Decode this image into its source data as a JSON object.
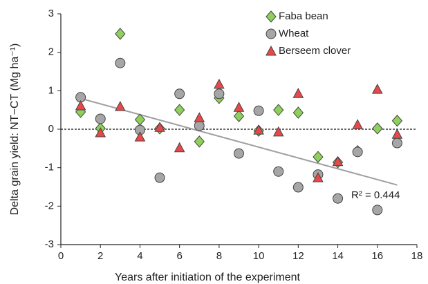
{
  "chart_data": {
    "type": "scatter",
    "x_label": "Years after initiation of the experiment",
    "y_label": "Delta grain yield: NT−CT (Mg ha⁻¹)",
    "x": [
      1,
      2,
      3,
      4,
      5,
      6,
      7,
      8,
      9,
      10,
      11,
      12,
      13,
      14,
      15,
      16,
      17
    ],
    "series": [
      {
        "name": "Faba bean",
        "color": "#8fd05c",
        "marker": "diamond",
        "values": [
          0.45,
          0.02,
          2.48,
          0.25,
          0.02,
          0.5,
          -0.32,
          0.81,
          0.34,
          -0.04,
          0.5,
          0.43,
          -0.72,
          -0.86,
          -0.57,
          0.02,
          0.22
        ]
      },
      {
        "name": "Wheat",
        "color": "#a6a6a6",
        "marker": "circle",
        "values": [
          0.83,
          0.27,
          1.72,
          -0.02,
          -1.26,
          0.92,
          0.09,
          0.92,
          -0.63,
          0.48,
          -1.1,
          -1.51,
          -1.18,
          -1.8,
          -0.59,
          -2.1,
          -0.36
        ]
      },
      {
        "name": "Berseem clover",
        "color": "#e8484a",
        "marker": "triangle",
        "values": [
          0.61,
          -0.09,
          0.59,
          -0.2,
          0.05,
          -0.48,
          0.3,
          1.17,
          0.57,
          -0.02,
          -0.07,
          0.93,
          -1.26,
          -0.84,
          0.12,
          1.04,
          -0.13
        ]
      }
    ],
    "trendline": {
      "color": "#a0a0a0",
      "x": [
        1,
        17
      ],
      "values": [
        0.8,
        -1.45
      ]
    },
    "reference_line": 0,
    "annotation": "R² = 0.444",
    "xlim": [
      0,
      18
    ],
    "xticks": [
      0,
      2,
      4,
      6,
      8,
      10,
      12,
      14,
      16,
      18
    ],
    "ylim": [
      -3,
      3
    ],
    "yticks": [
      -3,
      -2,
      -1,
      0,
      1,
      2,
      3
    ],
    "legend": "top-right"
  }
}
